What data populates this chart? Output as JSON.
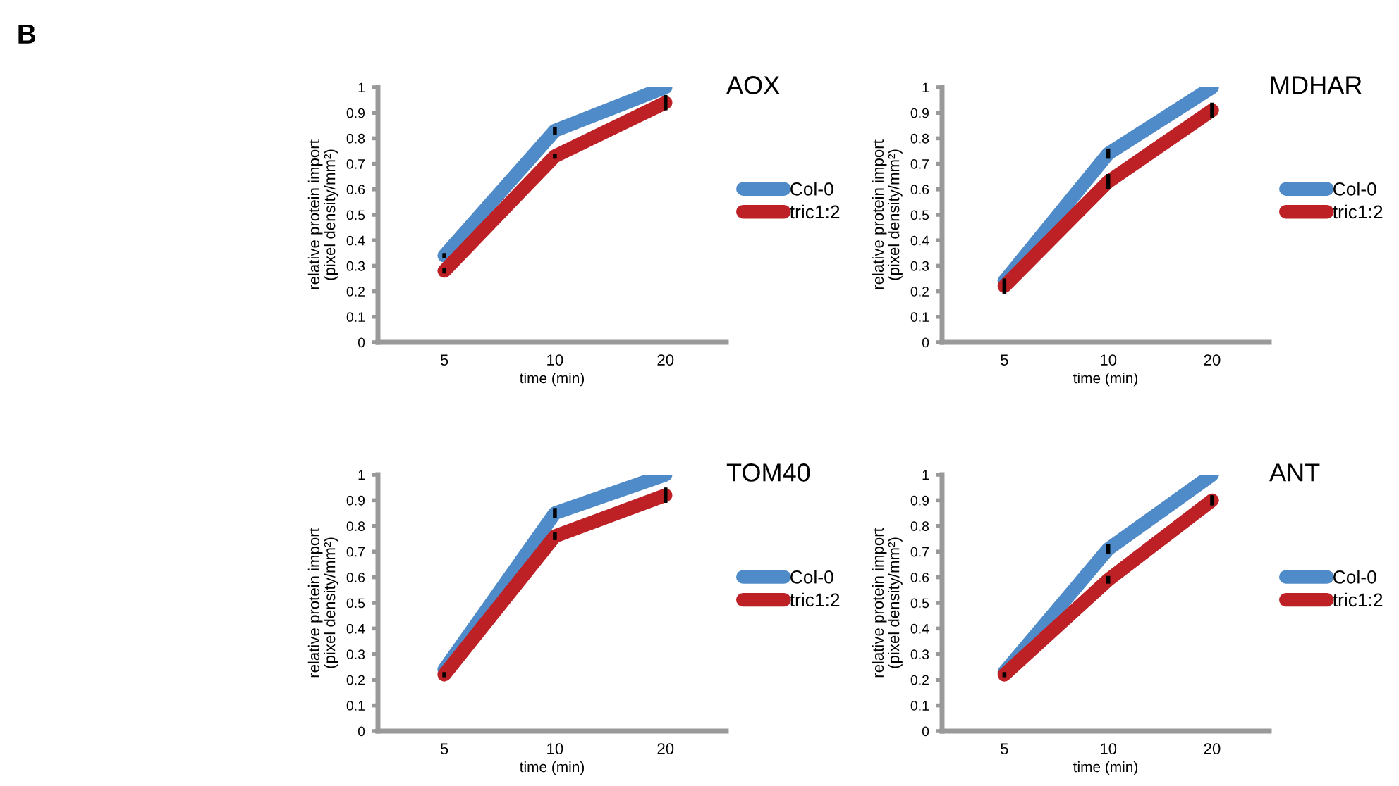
{
  "chart_data": [
    {
      "type": "line",
      "title": "AOX",
      "xlabel": "time (min)",
      "ylabel": "relative protein import\n(pixel density/mm²)",
      "annotations": [
        "B"
      ],
      "categories": [
        "5",
        "10",
        "20"
      ],
      "ylim": [
        0,
        1
      ],
      "yticks": [
        0,
        0.1,
        0.2,
        0.3,
        0.4,
        0.5,
        0.6,
        0.7,
        0.8,
        0.9,
        1
      ],
      "grid": false,
      "legend": "right",
      "marker": "none",
      "line_style": "solid",
      "series": [
        {
          "name": "Col-0",
          "color": "#4f8bc8",
          "values": [
            0.34,
            0.83,
            1.0
          ],
          "errors": [
            0.01,
            0.015,
            null
          ]
        },
        {
          "name": "tric1:2",
          "color": "#bd2025",
          "values": [
            0.28,
            0.73,
            0.94
          ],
          "errors": [
            0.01,
            0.01,
            0.03
          ]
        }
      ]
    },
    {
      "type": "line",
      "title": "MDHAR",
      "xlabel": "time (min)",
      "ylabel": "relative protein import\n(pixel density/mm²)",
      "categories": [
        "5",
        "10",
        "20"
      ],
      "ylim": [
        0,
        1
      ],
      "yticks": [
        0,
        0.1,
        0.2,
        0.3,
        0.4,
        0.5,
        0.6,
        0.7,
        0.8,
        0.9,
        1
      ],
      "grid": false,
      "legend": "right",
      "marker": "none",
      "line_style": "solid",
      "series": [
        {
          "name": "Col-0",
          "color": "#4f8bc8",
          "values": [
            0.24,
            0.74,
            1.0
          ],
          "errors": [
            null,
            0.02,
            null
          ]
        },
        {
          "name": "tric1:2",
          "color": "#bd2025",
          "values": [
            0.22,
            0.63,
            0.91
          ],
          "errors": [
            0.03,
            0.03,
            0.03
          ]
        }
      ]
    },
    {
      "type": "line",
      "title": "TOM40",
      "xlabel": "time (min)",
      "ylabel": "relative protein import\n(pixel density/mm²)",
      "categories": [
        "5",
        "10",
        "20"
      ],
      "ylim": [
        0,
        1
      ],
      "yticks": [
        0,
        0.1,
        0.2,
        0.3,
        0.4,
        0.5,
        0.6,
        0.7,
        0.8,
        0.9,
        1
      ],
      "grid": false,
      "legend": "right",
      "marker": "none",
      "line_style": "solid",
      "series": [
        {
          "name": "Col-0",
          "color": "#4f8bc8",
          "values": [
            0.24,
            0.85,
            1.0
          ],
          "errors": [
            null,
            0.02,
            null
          ]
        },
        {
          "name": "tric1:2",
          "color": "#bd2025",
          "values": [
            0.22,
            0.76,
            0.92
          ],
          "errors": [
            0.01,
            0.015,
            0.03
          ]
        }
      ]
    },
    {
      "type": "line",
      "title": "ANT",
      "xlabel": "time (min)",
      "ylabel": "relative protein import\n(pixel density/mm²)",
      "categories": [
        "5",
        "10",
        "20"
      ],
      "ylim": [
        0,
        1
      ],
      "yticks": [
        0,
        0.1,
        0.2,
        0.3,
        0.4,
        0.5,
        0.6,
        0.7,
        0.8,
        0.9,
        1
      ],
      "grid": false,
      "legend": "right",
      "marker": "none",
      "line_style": "solid",
      "series": [
        {
          "name": "Col-0",
          "color": "#4f8bc8",
          "values": [
            0.23,
            0.71,
            1.0
          ],
          "errors": [
            null,
            0.02,
            null
          ]
        },
        {
          "name": "tric1:2",
          "color": "#bd2025",
          "values": [
            0.22,
            0.59,
            0.9
          ],
          "errors": [
            0.01,
            0.015,
            0.02
          ]
        }
      ]
    }
  ]
}
